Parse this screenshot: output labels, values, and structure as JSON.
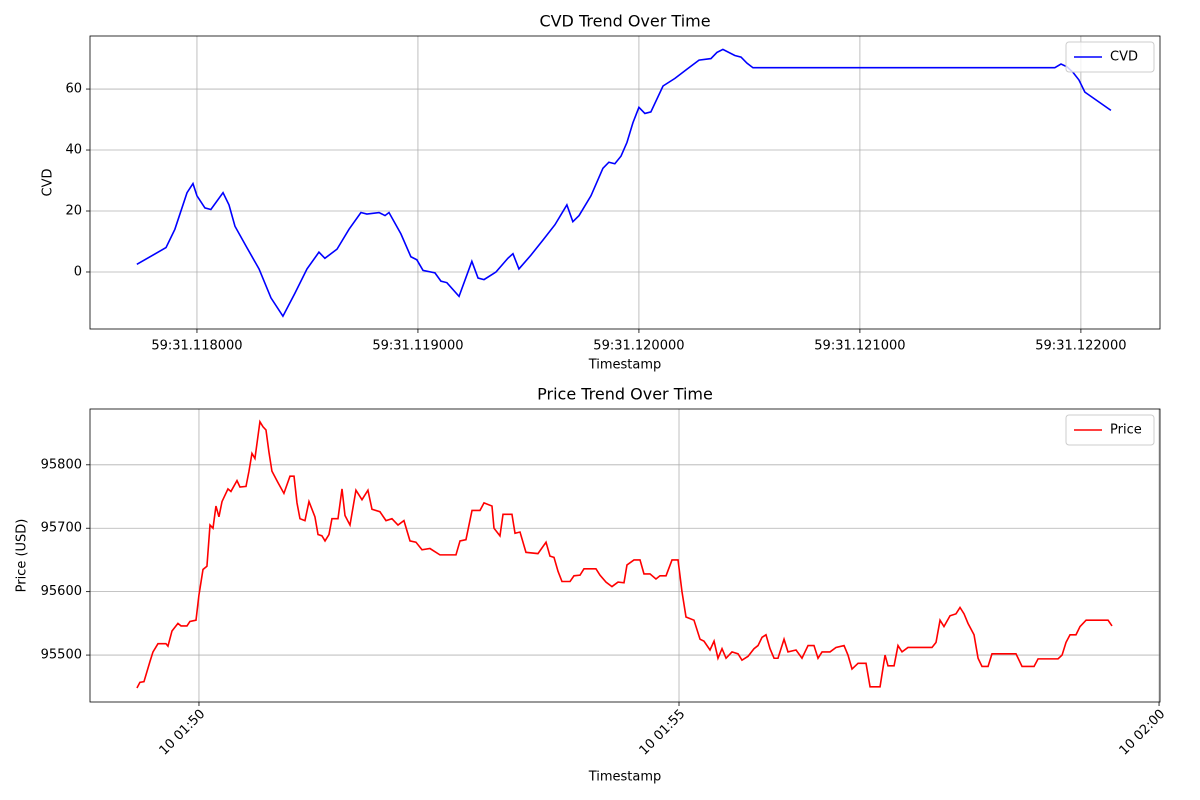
{
  "chart_data": [
    {
      "type": "line",
      "title": "CVD Trend Over Time",
      "xlabel": "Timestamp",
      "ylabel": "CVD",
      "x": [
        117728,
        117860,
        117900,
        117955,
        117982,
        118000,
        118036,
        118063,
        118118,
        118145,
        118172,
        118226,
        118281,
        118335,
        118389,
        118443,
        118498,
        118552,
        118579,
        118634,
        118688,
        118742,
        118769,
        118824,
        118851,
        118869,
        118923,
        118968,
        118995,
        119023,
        119077,
        119104,
        119131,
        119186,
        119244,
        119272,
        119299,
        119353,
        119407,
        119430,
        119457,
        119511,
        119566,
        119620,
        119674,
        119701,
        119729,
        119783,
        119837,
        119864,
        119891,
        119919,
        119946,
        119973,
        120000,
        120027,
        120054,
        120109,
        120163,
        120217,
        120272,
        120326,
        120353,
        120380,
        120434,
        120462,
        120489,
        120516,
        121882,
        121910,
        121937,
        121964,
        121991,
        122018,
        122136
      ],
      "series": [
        {
          "name": "CVD",
          "color": "#0000ff",
          "values": [
            2.5,
            8,
            14,
            26,
            29,
            25,
            21,
            20.5,
            26,
            22,
            15,
            8,
            1,
            -8.5,
            -14.5,
            -7,
            1,
            6.5,
            4.5,
            7.5,
            14,
            19.5,
            19,
            19.5,
            18.5,
            19.5,
            12.5,
            5,
            4,
            0.5,
            -0.3,
            -3,
            -3.5,
            -8,
            3.5,
            -2,
            -2.5,
            0,
            4.5,
            6,
            1,
            5.5,
            10.5,
            15.5,
            22,
            16.5,
            18.5,
            25,
            34,
            36,
            35.5,
            38,
            42.5,
            49,
            54,
            52,
            52.5,
            61,
            63.5,
            66.5,
            69.5,
            70,
            72,
            73,
            71,
            70.5,
            68.5,
            67,
            67,
            68.2,
            67.3,
            65.5,
            63,
            59,
            53
          ]
        }
      ],
      "xlim": [
        117516,
        122358
      ],
      "xticks": [
        {
          "value": 118000,
          "label": "59:31.118000"
        },
        {
          "value": 119000,
          "label": "59:31.119000"
        },
        {
          "value": 120000,
          "label": "59:31.120000"
        },
        {
          "value": 121000,
          "label": "59:31.121000"
        },
        {
          "value": 122000,
          "label": "59:31.122000"
        }
      ],
      "ylim": [
        -18.7,
        77.4
      ],
      "yticks": [
        0,
        20,
        40,
        60
      ],
      "grid": true,
      "legend": "upper right"
    },
    {
      "type": "line",
      "title": "Price Trend Over Time",
      "xlabel": "Timestamp",
      "ylabel": "Price (USD)",
      "x": [
        49.354,
        49.385,
        49.427,
        49.49,
        49.521,
        49.573,
        49.656,
        49.677,
        49.719,
        49.781,
        49.813,
        49.875,
        49.906,
        49.969,
        50,
        50.042,
        50.083,
        50.115,
        50.146,
        50.177,
        50.208,
        50.24,
        50.302,
        50.333,
        50.396,
        50.427,
        50.49,
        50.521,
        50.552,
        50.583,
        50.635,
        50.667,
        50.698,
        50.729,
        50.76,
        50.823,
        50.885,
        50.948,
        50.99,
        51.021,
        51.052,
        51.104,
        51.146,
        51.208,
        51.24,
        51.281,
        51.313,
        51.354,
        51.385,
        51.448,
        51.49,
        51.521,
        51.573,
        51.635,
        51.698,
        51.76,
        51.802,
        51.885,
        51.948,
        52.01,
        52.073,
        52.135,
        52.198,
        52.26,
        52.323,
        52.406,
        52.51,
        52.677,
        52.719,
        52.781,
        52.844,
        52.927,
        52.969,
        53.052,
        53.073,
        53.135,
        53.167,
        53.26,
        53.292,
        53.344,
        53.406,
        53.531,
        53.615,
        53.656,
        53.698,
        53.74,
        53.781,
        53.865,
        53.906,
        53.969,
        54.01,
        54.135,
        54.177,
        54.24,
        54.302,
        54.365,
        54.427,
        54.458,
        54.531,
        54.594,
        54.635,
        54.698,
        54.76,
        54.802,
        54.865,
        54.927,
        54.99,
        55.031,
        55.073,
        55.156,
        55.219,
        55.26,
        55.323,
        55.365,
        55.406,
        55.448,
        55.49,
        55.552,
        55.615,
        55.656,
        55.719,
        55.781,
        55.823,
        55.865,
        55.906,
        55.948,
        55.99,
        56.031,
        56.094,
        56.135,
        56.219,
        56.281,
        56.344,
        56.406,
        56.448,
        56.49,
        56.573,
        56.635,
        56.719,
        56.76,
        56.802,
        56.865,
        56.948,
        56.99,
        57.094,
        57.146,
        57.177,
        57.24,
        57.281,
        57.323,
        57.385,
        57.51,
        57.635,
        57.677,
        57.719,
        57.76,
        57.823,
        57.885,
        57.927,
        57.969,
        58.01,
        58.073,
        58.115,
        58.156,
        58.219,
        58.26,
        58.385,
        58.51,
        58.573,
        58.698,
        58.74,
        58.865,
        58.948,
        58.99,
        59.031,
        59.073,
        59.135,
        59.177,
        59.24,
        59.469,
        59.51
      ],
      "series": [
        {
          "name": "Price",
          "color": "#ff0000",
          "values": [
            95448,
            95457,
            95458,
            95490,
            95505,
            95518,
            95518,
            95514,
            95538,
            95550,
            95546,
            95546,
            95553,
            95555,
            95595,
            95635,
            95640,
            95705,
            95700,
            95735,
            95718,
            95742,
            95762,
            95758,
            95775,
            95765,
            95766,
            95790,
            95818,
            95810,
            95868,
            95860,
            95855,
            95820,
            95790,
            95772,
            95755,
            95782,
            95782,
            95740,
            95715,
            95712,
            95742,
            95718,
            95690,
            95688,
            95680,
            95690,
            95715,
            95715,
            95762,
            95720,
            95705,
            95760,
            95745,
            95760,
            95730,
            95726,
            95712,
            95715,
            95705,
            95712,
            95680,
            95678,
            95666,
            95668,
            95658,
            95658,
            95680,
            95682,
            95728,
            95728,
            95740,
            95735,
            95700,
            95688,
            95722,
            95722,
            95692,
            95694,
            95662,
            95660,
            95678,
            95656,
            95654,
            95632,
            95616,
            95616,
            95625,
            95626,
            95636,
            95636,
            95626,
            95615,
            95608,
            95615,
            95614,
            95642,
            95650,
            95650,
            95628,
            95628,
            95620,
            95625,
            95625,
            95650,
            95650,
            95600,
            95560,
            95555,
            95525,
            95522,
            95508,
            95522,
            95495,
            95510,
            95495,
            95505,
            95502,
            95492,
            95498,
            95510,
            95515,
            95528,
            95532,
            95510,
            95495,
            95495,
            95525,
            95505,
            95508,
            95495,
            95515,
            95515,
            95495,
            95505,
            95505,
            95512,
            95515,
            95500,
            95478,
            95487,
            95487,
            95450,
            95450,
            95500,
            95483,
            95483,
            95515,
            95505,
            95512,
            95512,
            95512,
            95520,
            95555,
            95545,
            95562,
            95565,
            95575,
            95565,
            95550,
            95532,
            95495,
            95482,
            95482,
            95502,
            95502,
            95502,
            95482,
            95482,
            95494,
            95494,
            95494,
            95500,
            95520,
            95532,
            95532,
            95545,
            95555,
            95555,
            95546
          ]
        }
      ],
      "xlim": [
        48.865,
        60.01
      ],
      "xticks": [
        {
          "value": 50,
          "label": "10 01:50"
        },
        {
          "value": 55,
          "label": "10 01:55"
        },
        {
          "value": 60,
          "label": "10 02:00"
        }
      ],
      "xtick_rotation": 45,
      "ylim": [
        95426,
        95888
      ],
      "yticks": [
        95500,
        95600,
        95700,
        95800
      ],
      "grid": true,
      "legend": "upper right"
    }
  ]
}
